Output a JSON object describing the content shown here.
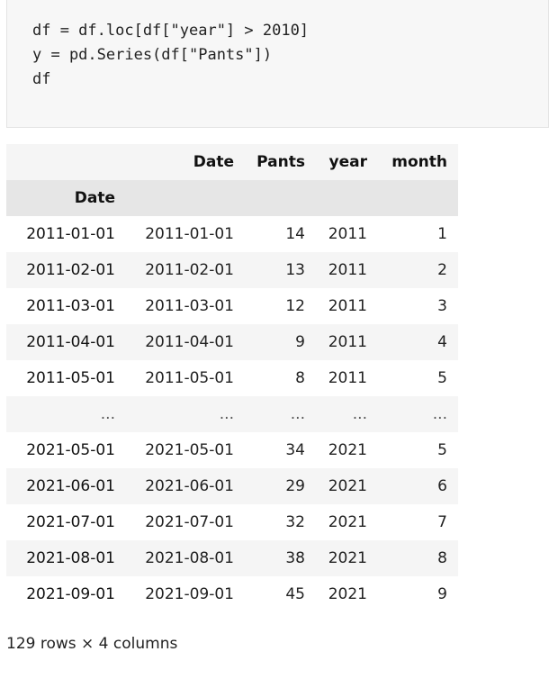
{
  "code": {
    "lines": [
      "df = df.loc[df[\"year\"] > 2010]",
      "y = pd.Series(df[\"Pants\"])",
      "df"
    ]
  },
  "table": {
    "columns": [
      "Date",
      "Pants",
      "year",
      "month"
    ],
    "index_name": "Date",
    "rows": [
      {
        "index": "2011-01-01",
        "cells": [
          "2011-01-01",
          "14",
          "2011",
          "1"
        ]
      },
      {
        "index": "2011-02-01",
        "cells": [
          "2011-02-01",
          "13",
          "2011",
          "2"
        ]
      },
      {
        "index": "2011-03-01",
        "cells": [
          "2011-03-01",
          "12",
          "2011",
          "3"
        ]
      },
      {
        "index": "2011-04-01",
        "cells": [
          "2011-04-01",
          "9",
          "2011",
          "4"
        ]
      },
      {
        "index": "2011-05-01",
        "cells": [
          "2011-05-01",
          "8",
          "2011",
          "5"
        ]
      },
      {
        "index": "...",
        "cells": [
          "...",
          "...",
          "...",
          "..."
        ]
      },
      {
        "index": "2021-05-01",
        "cells": [
          "2021-05-01",
          "34",
          "2021",
          "5"
        ]
      },
      {
        "index": "2021-06-01",
        "cells": [
          "2021-06-01",
          "29",
          "2021",
          "6"
        ]
      },
      {
        "index": "2021-07-01",
        "cells": [
          "2021-07-01",
          "32",
          "2021",
          "7"
        ]
      },
      {
        "index": "2021-08-01",
        "cells": [
          "2021-08-01",
          "38",
          "2021",
          "8"
        ]
      },
      {
        "index": "2021-09-01",
        "cells": [
          "2021-09-01",
          "45",
          "2021",
          "9"
        ]
      }
    ]
  },
  "footer": {
    "shape": "129 rows × 4 columns"
  }
}
